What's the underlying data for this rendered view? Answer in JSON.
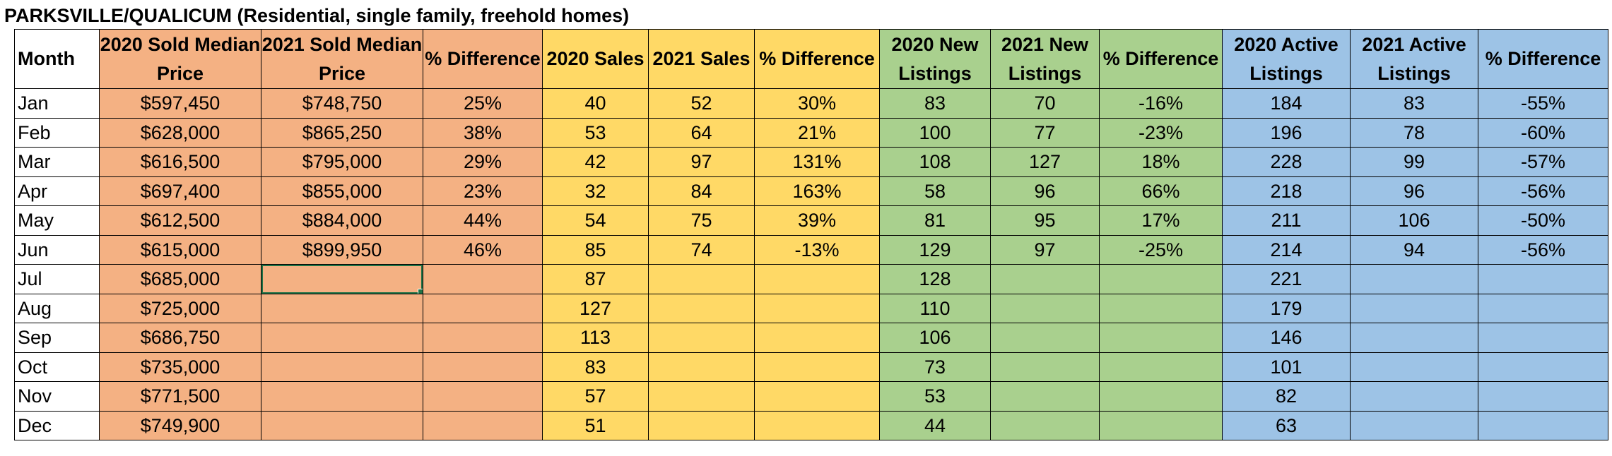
{
  "title": "PARKSVILLE/QUALICUM (Residential, single family, freehold homes)",
  "colors": {
    "price_group": "#f4b183",
    "sales_group": "#ffd966",
    "new_listings_group": "#a9d08e",
    "active_listings_group": "#9dc3e6",
    "selection": "#217346"
  },
  "columns": [
    {
      "label": "Month",
      "group": "month"
    },
    {
      "label": "2020 Sold Median Price",
      "group": "price"
    },
    {
      "label": "2021 Sold Median Price",
      "group": "price"
    },
    {
      "label": "% Difference",
      "group": "price"
    },
    {
      "label": "2020 Sales",
      "group": "sales"
    },
    {
      "label": "2021 Sales",
      "group": "sales"
    },
    {
      "label": "% Difference",
      "group": "sales"
    },
    {
      "label": "2020 New Listings",
      "group": "new"
    },
    {
      "label": "2021 New Listings",
      "group": "new"
    },
    {
      "label": "% Difference",
      "group": "new"
    },
    {
      "label": "2020 Active Listings",
      "group": "act"
    },
    {
      "label": "2021 Active Listings",
      "group": "act"
    },
    {
      "label": "% Difference",
      "group": "act"
    }
  ],
  "rows": [
    [
      "Jan",
      "$597,450",
      "$748,750",
      "25%",
      "40",
      "52",
      "30%",
      "83",
      "70",
      "-16%",
      "184",
      "83",
      "-55%"
    ],
    [
      "Feb",
      "$628,000",
      "$865,250",
      "38%",
      "53",
      "64",
      "21%",
      "100",
      "77",
      "-23%",
      "196",
      "78",
      "-60%"
    ],
    [
      "Mar",
      "$616,500",
      "$795,000",
      "29%",
      "42",
      "97",
      "131%",
      "108",
      "127",
      "18%",
      "228",
      "99",
      "-57%"
    ],
    [
      "Apr",
      "$697,400",
      "$855,000",
      "23%",
      "32",
      "84",
      "163%",
      "58",
      "96",
      "66%",
      "218",
      "96",
      "-56%"
    ],
    [
      "May",
      "$612,500",
      "$884,000",
      "44%",
      "54",
      "75",
      "39%",
      "81",
      "95",
      "17%",
      "211",
      "106",
      "-50%"
    ],
    [
      "Jun",
      "$615,000",
      "$899,950",
      "46%",
      "85",
      "74",
      "-13%",
      "129",
      "97",
      "-25%",
      "214",
      "94",
      "-56%"
    ],
    [
      "Jul",
      "$685,000",
      "",
      "",
      "87",
      "",
      "",
      "128",
      "",
      "",
      "221",
      "",
      ""
    ],
    [
      "Aug",
      "$725,000",
      "",
      "",
      "127",
      "",
      "",
      "110",
      "",
      "",
      "179",
      "",
      ""
    ],
    [
      "Sep",
      "$686,750",
      "",
      "",
      "113",
      "",
      "",
      "106",
      "",
      "",
      "146",
      "",
      ""
    ],
    [
      "Oct",
      "$735,000",
      "",
      "",
      "83",
      "",
      "",
      "73",
      "",
      "",
      "101",
      "",
      ""
    ],
    [
      "Nov",
      "$771,500",
      "",
      "",
      "57",
      "",
      "",
      "53",
      "",
      "",
      "82",
      "",
      ""
    ],
    [
      "Dec",
      "$749,900",
      "",
      "",
      "51",
      "",
      "",
      "44",
      "",
      "",
      "63",
      "",
      ""
    ]
  ],
  "selected_cell": {
    "row": 6,
    "col": 2
  }
}
